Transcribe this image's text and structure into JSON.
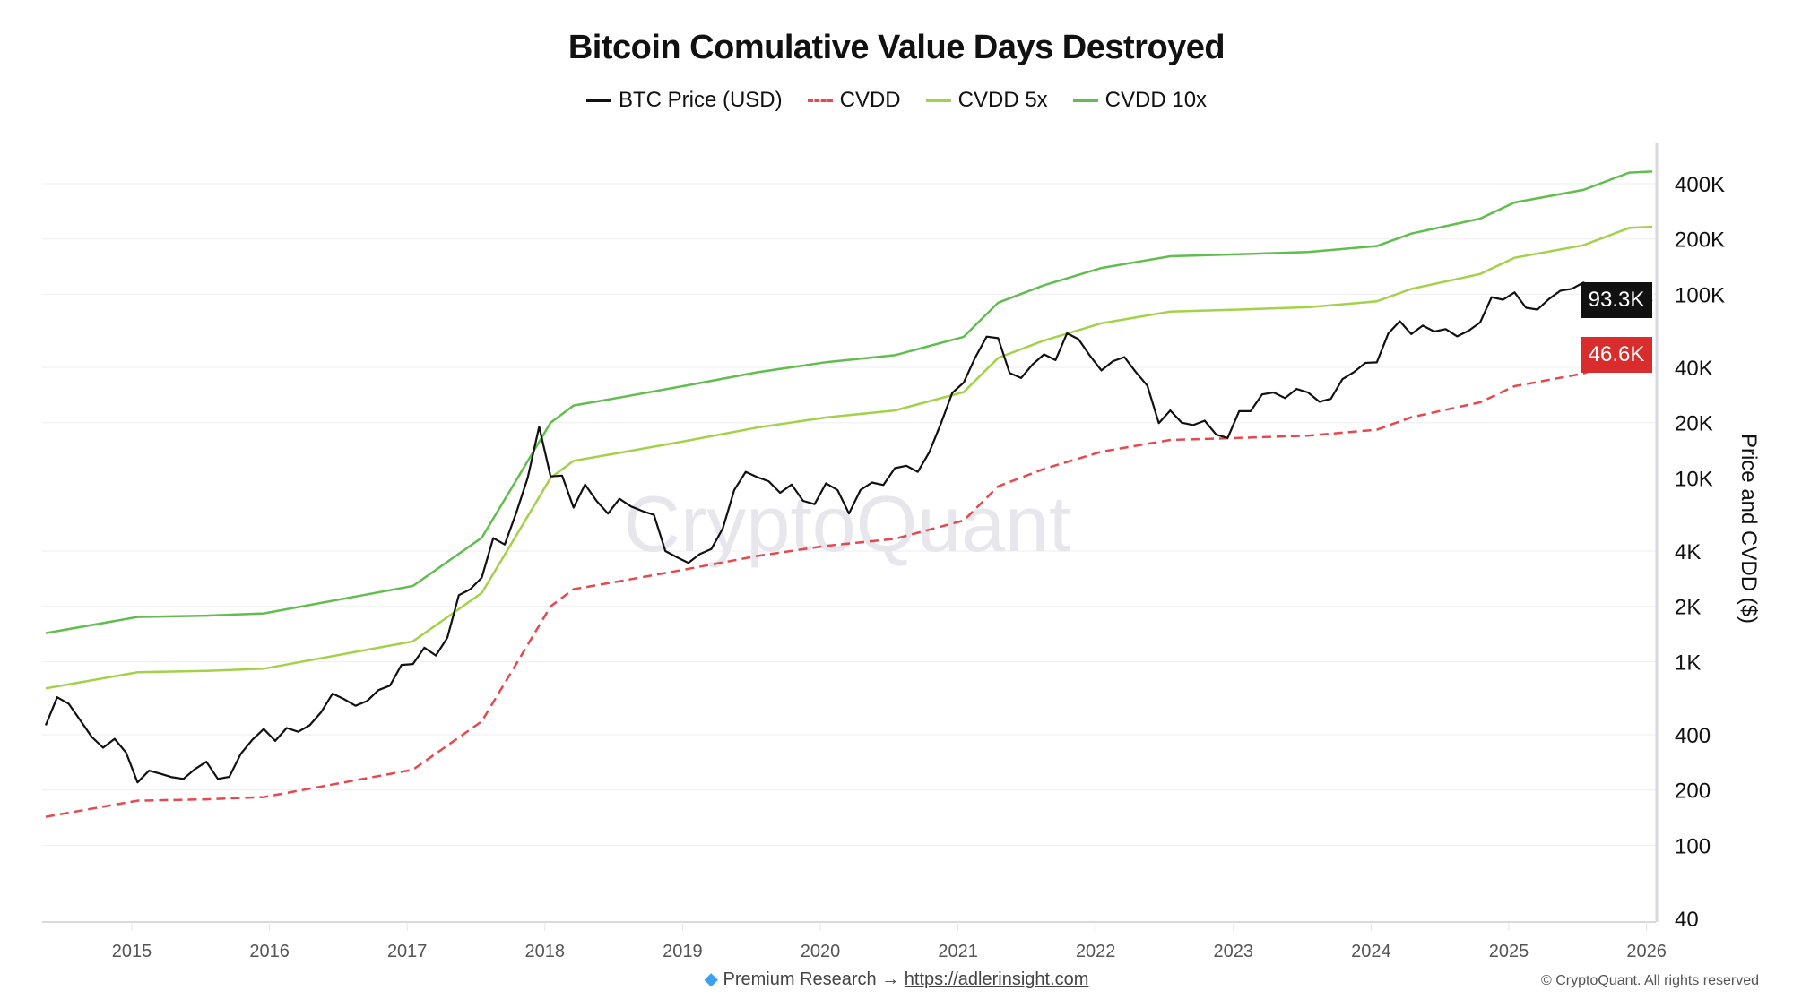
{
  "chart_data": {
    "type": "line",
    "title": "Bitcoin Comulative Value Days Destroyed",
    "ylabel": "Price and CVDD ($)",
    "xlabel": "",
    "y_scale": "log",
    "ylim": [
      40,
      660000
    ],
    "xlim": [
      "2014-05",
      "2026-01"
    ],
    "grid": "horizontal",
    "legend_position": "top",
    "x_ticks": [
      "2015",
      "2016",
      "2017",
      "2018",
      "2019",
      "2020",
      "2021",
      "2022",
      "2023",
      "2024",
      "2025",
      "2026"
    ],
    "y_ticks": [
      {
        "value": 400000,
        "label": "400K"
      },
      {
        "value": 200000,
        "label": "200K"
      },
      {
        "value": 100000,
        "label": "100K"
      },
      {
        "value": 40000,
        "label": "40K"
      },
      {
        "value": 20000,
        "label": "20K"
      },
      {
        "value": 10000,
        "label": "10K"
      },
      {
        "value": 4000,
        "label": "4K"
      },
      {
        "value": 2000,
        "label": "2K"
      },
      {
        "value": 1000,
        "label": "1K"
      },
      {
        "value": 400,
        "label": "400"
      },
      {
        "value": 200,
        "label": "200"
      },
      {
        "value": 100,
        "label": "100"
      },
      {
        "value": 40,
        "label": "40"
      }
    ],
    "watermark": "CryptoQuant",
    "series": [
      {
        "name": "BTC Price (USD)",
        "color": "#111111",
        "style": "solid",
        "last_label": "93.3K",
        "points": [
          [
            "2014-05",
            450
          ],
          [
            "2014-06",
            640
          ],
          [
            "2014-07",
            590
          ],
          [
            "2014-08",
            480
          ],
          [
            "2014-09",
            390
          ],
          [
            "2014-10",
            340
          ],
          [
            "2014-11",
            380
          ],
          [
            "2014-12",
            320
          ],
          [
            "2015-01",
            220
          ],
          [
            "2015-02",
            255
          ],
          [
            "2015-03",
            245
          ],
          [
            "2015-04",
            235
          ],
          [
            "2015-05",
            230
          ],
          [
            "2015-06",
            260
          ],
          [
            "2015-07",
            285
          ],
          [
            "2015-08",
            230
          ],
          [
            "2015-09",
            236
          ],
          [
            "2015-10",
            315
          ],
          [
            "2015-11",
            375
          ],
          [
            "2015-12",
            430
          ],
          [
            "2016-01",
            370
          ],
          [
            "2016-02",
            435
          ],
          [
            "2016-03",
            415
          ],
          [
            "2016-04",
            450
          ],
          [
            "2016-05",
            530
          ],
          [
            "2016-06",
            670
          ],
          [
            "2016-07",
            625
          ],
          [
            "2016-08",
            575
          ],
          [
            "2016-09",
            610
          ],
          [
            "2016-10",
            700
          ],
          [
            "2016-11",
            740
          ],
          [
            "2016-12",
            960
          ],
          [
            "2017-01",
            970
          ],
          [
            "2017-02",
            1190
          ],
          [
            "2017-03",
            1080
          ],
          [
            "2017-04",
            1350
          ],
          [
            "2017-05",
            2300
          ],
          [
            "2017-06",
            2480
          ],
          [
            "2017-07",
            2870
          ],
          [
            "2017-08",
            4700
          ],
          [
            "2017-09",
            4340
          ],
          [
            "2017-10",
            6450
          ],
          [
            "2017-11",
            10000
          ],
          [
            "2017-12",
            19000
          ],
          [
            "2018-01",
            10200
          ],
          [
            "2018-02",
            10300
          ],
          [
            "2018-03",
            6900
          ],
          [
            "2018-04",
            9200
          ],
          [
            "2018-05",
            7500
          ],
          [
            "2018-06",
            6400
          ],
          [
            "2018-07",
            7700
          ],
          [
            "2018-08",
            7000
          ],
          [
            "2018-09",
            6600
          ],
          [
            "2018-10",
            6300
          ],
          [
            "2018-11",
            4000
          ],
          [
            "2018-12",
            3700
          ],
          [
            "2019-01",
            3450
          ],
          [
            "2019-02",
            3850
          ],
          [
            "2019-03",
            4100
          ],
          [
            "2019-04",
            5300
          ],
          [
            "2019-05",
            8600
          ],
          [
            "2019-06",
            10800
          ],
          [
            "2019-07",
            10100
          ],
          [
            "2019-08",
            9600
          ],
          [
            "2019-09",
            8300
          ],
          [
            "2019-10",
            9200
          ],
          [
            "2019-11",
            7500
          ],
          [
            "2019-12",
            7200
          ],
          [
            "2020-01",
            9350
          ],
          [
            "2020-02",
            8600
          ],
          [
            "2020-03",
            6400
          ],
          [
            "2020-04",
            8600
          ],
          [
            "2020-05",
            9450
          ],
          [
            "2020-06",
            9150
          ],
          [
            "2020-07",
            11300
          ],
          [
            "2020-08",
            11650
          ],
          [
            "2020-09",
            10800
          ],
          [
            "2020-10",
            13800
          ],
          [
            "2020-11",
            19700
          ],
          [
            "2020-12",
            29000
          ],
          [
            "2021-01",
            33100
          ],
          [
            "2021-02",
            45200
          ],
          [
            "2021-03",
            58800
          ],
          [
            "2021-04",
            57700
          ],
          [
            "2021-05",
            37300
          ],
          [
            "2021-06",
            35000
          ],
          [
            "2021-07",
            41500
          ],
          [
            "2021-08",
            47100
          ],
          [
            "2021-09",
            43800
          ],
          [
            "2021-10",
            61300
          ],
          [
            "2021-11",
            57000
          ],
          [
            "2021-12",
            46300
          ],
          [
            "2022-01",
            38500
          ],
          [
            "2022-02",
            43200
          ],
          [
            "2022-03",
            45500
          ],
          [
            "2022-04",
            37700
          ],
          [
            "2022-05",
            31800
          ],
          [
            "2022-06",
            19900
          ],
          [
            "2022-07",
            23300
          ],
          [
            "2022-08",
            20000
          ],
          [
            "2022-09",
            19400
          ],
          [
            "2022-10",
            20500
          ],
          [
            "2022-11",
            17200
          ],
          [
            "2022-12",
            16500
          ],
          [
            "2023-01",
            23100
          ],
          [
            "2023-02",
            23100
          ],
          [
            "2023-03",
            28500
          ],
          [
            "2023-04",
            29200
          ],
          [
            "2023-05",
            27200
          ],
          [
            "2023-06",
            30500
          ],
          [
            "2023-07",
            29200
          ],
          [
            "2023-08",
            26000
          ],
          [
            "2023-09",
            27000
          ],
          [
            "2023-10",
            34500
          ],
          [
            "2023-11",
            37700
          ],
          [
            "2023-12",
            42300
          ],
          [
            "2024-01",
            42600
          ],
          [
            "2024-02",
            61200
          ],
          [
            "2024-03",
            71300
          ],
          [
            "2024-04",
            60700
          ],
          [
            "2024-05",
            67500
          ],
          [
            "2024-06",
            62700
          ],
          [
            "2024-07",
            64600
          ],
          [
            "2024-08",
            59000
          ],
          [
            "2024-09",
            63300
          ],
          [
            "2024-10",
            70200
          ],
          [
            "2024-11",
            96400
          ],
          [
            "2024-12",
            93400
          ],
          [
            "2025-01",
            102400
          ],
          [
            "2025-02",
            84400
          ],
          [
            "2025-03",
            82500
          ],
          [
            "2025-04",
            94200
          ],
          [
            "2025-05",
            104600
          ],
          [
            "2025-06",
            107100
          ],
          [
            "2025-07",
            115700
          ],
          [
            "2025-08",
            108200
          ],
          [
            "2025-09",
            114000
          ],
          [
            "2025-10",
            109500
          ],
          [
            "2025-11",
            90000
          ],
          [
            "2025-12",
            87500
          ],
          [
            "2026-01",
            93300
          ]
        ]
      },
      {
        "name": "CVDD",
        "color": "#e5484d",
        "style": "dashed",
        "last_label": "46.6K",
        "points": [
          [
            "2014-05",
            143
          ],
          [
            "2015-01",
            175
          ],
          [
            "2015-07",
            178
          ],
          [
            "2015-12",
            183
          ],
          [
            "2016-07",
            220
          ],
          [
            "2017-01",
            258
          ],
          [
            "2017-07",
            473
          ],
          [
            "2017-10",
            970
          ],
          [
            "2018-01",
            2000
          ],
          [
            "2018-03",
            2480
          ],
          [
            "2018-07",
            2740
          ],
          [
            "2019-01",
            3200
          ],
          [
            "2019-07",
            3760
          ],
          [
            "2020-01",
            4270
          ],
          [
            "2020-07",
            4660
          ],
          [
            "2021-01",
            5870
          ],
          [
            "2021-04",
            9000
          ],
          [
            "2021-08",
            11200
          ],
          [
            "2022-01",
            13900
          ],
          [
            "2022-07",
            16100
          ],
          [
            "2023-01",
            16500
          ],
          [
            "2023-07",
            17000
          ],
          [
            "2024-01",
            18300
          ],
          [
            "2024-04",
            21400
          ],
          [
            "2024-10",
            25800
          ],
          [
            "2025-01",
            31600
          ],
          [
            "2025-07",
            37000
          ],
          [
            "2025-11",
            46000
          ],
          [
            "2026-01",
            46600
          ]
        ]
      },
      {
        "name": "CVDD 5x",
        "color": "#a3d14a",
        "style": "solid",
        "multiplier_of_cvdd": 5
      },
      {
        "name": "CVDD 10x",
        "color": "#62bd4f",
        "style": "solid",
        "multiplier_of_cvdd": 10
      }
    ]
  },
  "footer": {
    "icon": "gem-icon",
    "text": "Premium Research →",
    "link": "https://adlerinsight.com"
  },
  "copyright": "© CryptoQuant. All rights reserved"
}
